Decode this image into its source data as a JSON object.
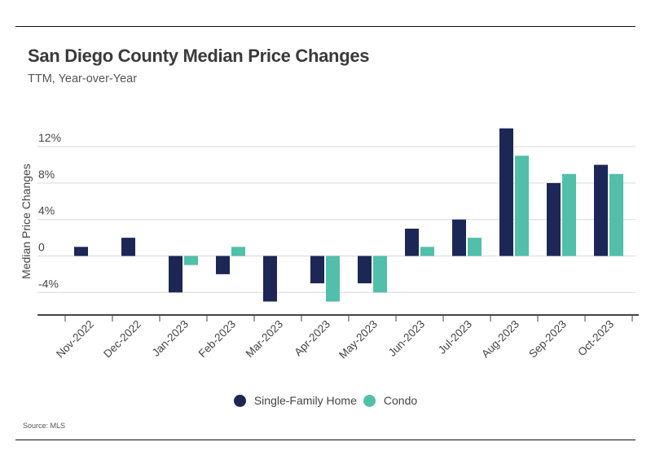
{
  "header": {
    "title": "San Diego County Median Price Changes",
    "subtitle": "TTM, Year-over-Year"
  },
  "footer": {
    "source": "Source: MLS"
  },
  "colors": {
    "single_family": "#1d2756",
    "condo": "#52bfaa",
    "grid": "#d9d9d9",
    "axis": "#444444"
  },
  "chart_data": {
    "type": "bar",
    "title": "San Diego County Median Price Changes",
    "subtitle": "TTM, Year-over-Year",
    "xlabel": "",
    "ylabel": "Median Price Changes",
    "ylim": [
      -6,
      14
    ],
    "yticks": [
      -4,
      0,
      4,
      8,
      12
    ],
    "ytick_labels": [
      "-4%",
      "0",
      "4%",
      "8%",
      "12%"
    ],
    "grid": true,
    "legend_position": "bottom-center",
    "categories": [
      "Nov-2022",
      "Dec-2022",
      "Jan-2023",
      "Feb-2023",
      "Mar-2023",
      "Apr-2023",
      "May-2023",
      "Jun-2023",
      "Jul-2023",
      "Aug-2023",
      "Sep-2023",
      "Oct-2023"
    ],
    "series": [
      {
        "name": "Single-Family Home",
        "values": [
          1,
          2,
          -4,
          -2,
          -5,
          -3,
          -3,
          3,
          4,
          14,
          8,
          10
        ]
      },
      {
        "name": "Condo",
        "values": [
          null,
          null,
          -1,
          1,
          null,
          -5,
          -4,
          1,
          2,
          11,
          9,
          9
        ]
      }
    ],
    "units": "%"
  }
}
